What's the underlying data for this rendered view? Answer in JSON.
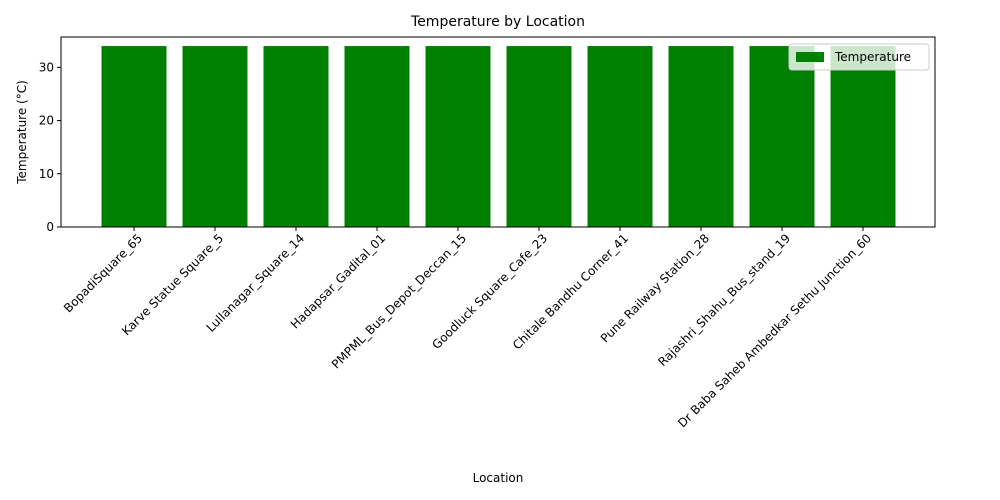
{
  "chart_data": {
    "type": "bar",
    "title": "Temperature by Location",
    "xlabel": "Location",
    "ylabel": "Temperature (°C)",
    "categories": [
      "BopadiSquare_65",
      "Karve Statue Square_5",
      "Lullanagar_Square_14",
      "Hadapsar_Gadital_01",
      "PMPML_Bus_Depot_Deccan_15",
      "Goodluck Square_Cafe_23",
      "Chitale Bandhu Corner_41",
      "Pune Railway Station_28",
      "Rajashri_Shahu_Bus_stand_19",
      "Dr Baba Saheb Ambedkar Sethu Junction_60"
    ],
    "series": [
      {
        "name": "Temperature",
        "values": [
          34,
          34,
          34,
          34,
          34,
          34,
          34,
          34,
          34,
          34
        ],
        "color": "#008000"
      }
    ],
    "ylim": [
      0,
      35.7
    ],
    "yticks": [
      0,
      10,
      20,
      30
    ],
    "grid": false,
    "legend_position": "top-right"
  }
}
